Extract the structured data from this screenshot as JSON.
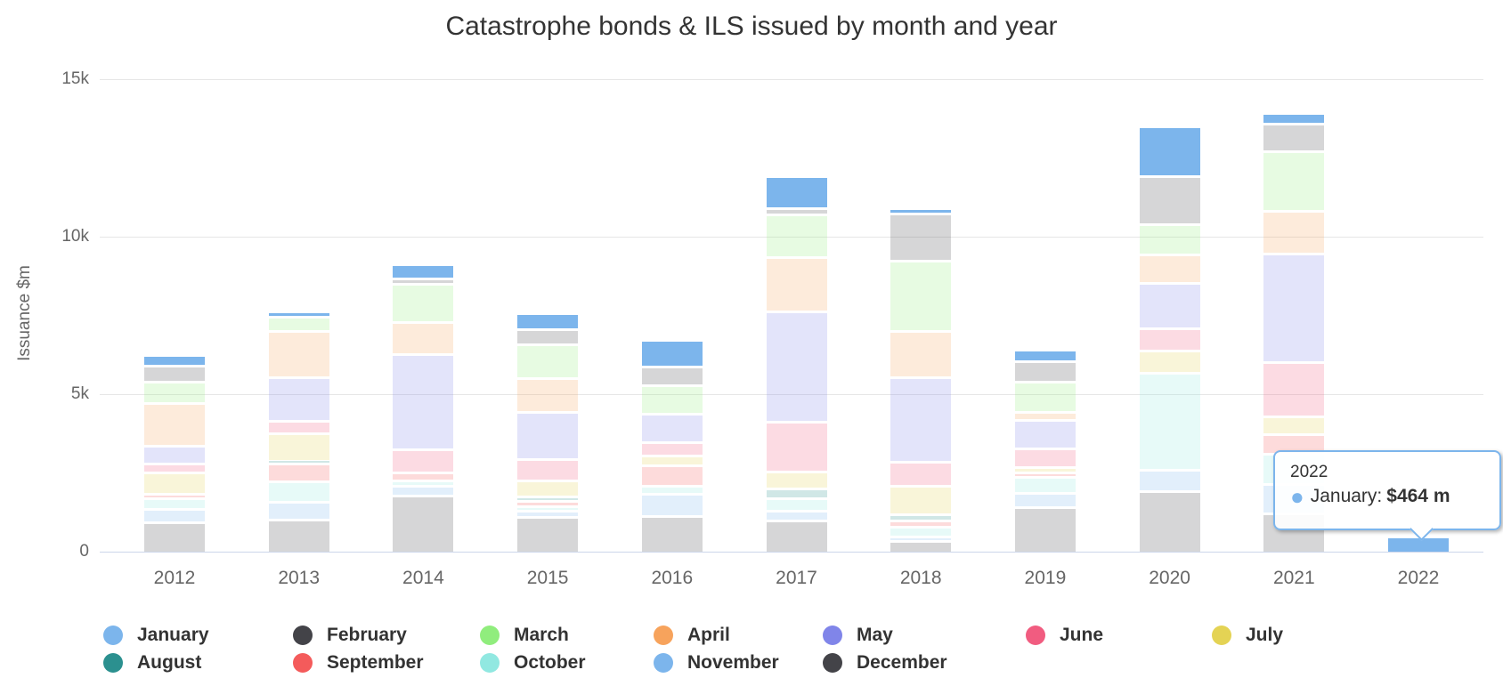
{
  "title": "Catastrophe bonds & ILS issued by month and year",
  "y_axis": {
    "title": "Issuance $m",
    "ticks": [
      {
        "label": "15k",
        "value": 15000
      },
      {
        "label": "10k",
        "value": 10000
      },
      {
        "label": "5k",
        "value": 5000
      },
      {
        "label": "0",
        "value": 0
      }
    ]
  },
  "tooltip": {
    "year": "2022",
    "series": "January:",
    "value": "$464 m"
  },
  "chart_data": {
    "type": "bar",
    "stacked": true,
    "title": "Catastrophe bonds & ILS issued by month and year",
    "ylabel": "Issuance $m",
    "ylim": [
      0,
      15000
    ],
    "grid": true,
    "legend_position": "bottom",
    "highlighted_series": "January",
    "stack_order_top_to_bottom": [
      "January",
      "February",
      "March",
      "April",
      "May",
      "June",
      "July",
      "August",
      "September",
      "October",
      "November",
      "December"
    ],
    "categories": [
      "2012",
      "2013",
      "2014",
      "2015",
      "2016",
      "2017",
      "2018",
      "2019",
      "2020",
      "2021",
      "2022"
    ],
    "series": [
      {
        "name": "January",
        "color": "#7cb5ec",
        "values": [
          350,
          150,
          445,
          515,
          850,
          1005,
          175,
          380,
          1565,
          320,
          464
        ]
      },
      {
        "name": "February",
        "color": "#434348",
        "values": [
          510,
          0,
          165,
          480,
          575,
          200,
          1495,
          640,
          1535,
          880,
          0
        ]
      },
      {
        "name": "March",
        "color": "#90ed7d",
        "values": [
          660,
          450,
          1215,
          1065,
          910,
          1345,
          2245,
          950,
          970,
          1895,
          0
        ]
      },
      {
        "name": "April",
        "color": "#f7a35c",
        "values": [
          1370,
          1475,
          1010,
          1065,
          0,
          1730,
          1465,
          270,
          905,
          1355,
          0
        ]
      },
      {
        "name": "May",
        "color": "#8085e9",
        "values": [
          560,
          1385,
          3035,
          1510,
          910,
          3520,
          2680,
          885,
          1435,
          3435,
          0
        ]
      },
      {
        "name": "June",
        "color": "#f15c80",
        "values": [
          290,
          410,
          730,
          675,
          410,
          1580,
          770,
          605,
          690,
          1735,
          0
        ]
      },
      {
        "name": "July",
        "color": "#e4d354",
        "values": [
          670,
          855,
          0,
          515,
          305,
          525,
          910,
          170,
          720,
          565,
          0
        ]
      },
      {
        "name": "August",
        "color": "#2b908f",
        "values": [
          0,
          90,
          0,
          130,
          0,
          320,
          175,
          0,
          0,
          0,
          0
        ]
      },
      {
        "name": "September",
        "color": "#f45b5b",
        "values": [
          140,
          560,
          255,
          190,
          675,
          0,
          200,
          135,
          0,
          630,
          0
        ]
      },
      {
        "name": "October",
        "color": "#91e8e1",
        "values": [
          330,
          660,
          175,
          125,
          230,
          400,
          305,
          515,
          3065,
          940,
          0
        ]
      },
      {
        "name": "November",
        "color": "#7cb5ec",
        "values": [
          420,
          550,
          315,
          205,
          715,
          300,
          150,
          465,
          690,
          945,
          0
        ]
      },
      {
        "name": "December",
        "color": "#434348",
        "values": [
          930,
          1015,
          1755,
          1085,
          1120,
          975,
          330,
          1385,
          1905,
          1200,
          0
        ]
      }
    ]
  }
}
